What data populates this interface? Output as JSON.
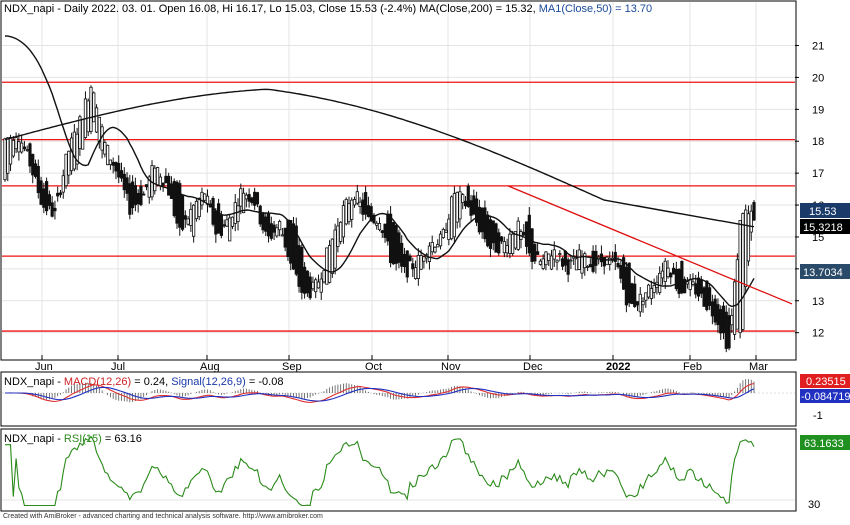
{
  "app": {
    "footer_text": "Created with AmiBroker - advanced charting and technical analysis software. http://www.amibroker.com"
  },
  "price_panel": {
    "header": {
      "ticker": "NDX_napi",
      "info": " - Daily 2022. 03. 01. Open 16.08, Hi 16.17, Lo 15.03, Close 15.53 (-2.4%) MA(Close,200) = 15.32, ",
      "ma50_label": "MA1(Close,50) = 13.70"
    },
    "badges": {
      "close": "15.53",
      "ma200": "15.3218",
      "ma50": "13.7034"
    }
  },
  "macd_panel": {
    "header": {
      "ticker": "NDX_napi",
      "sep": " - ",
      "macd_label": "MACD(12,26)",
      "macd_value": " = 0.24, ",
      "signal_label": "Signal(12,26,9)",
      "signal_value": " = -0.08"
    },
    "badges": {
      "macd": "0.23515",
      "signal": "-0.084719"
    },
    "y_ticks": [
      "-1"
    ]
  },
  "rsi_panel": {
    "header": {
      "ticker": "NDX_napi",
      "sep": " - ",
      "rsi_label": "RSI(15)",
      "rsi_value": " = 63.16"
    },
    "badges": {
      "rsi": "63.1633"
    },
    "y_ticks": [
      "30"
    ]
  },
  "chart_data": [
    {
      "type": "candlestick",
      "title": "NDX_napi - Daily",
      "y_ticks": [
        12,
        13,
        14,
        15,
        16,
        17,
        18,
        19,
        20,
        21
      ],
      "ylim": [
        11.3,
        21.8
      ],
      "x_tick_labels": [
        "Jun",
        "Jul",
        "Aug",
        "Sep",
        "Oct",
        "Nov",
        "Dec",
        "2022",
        "Feb",
        "Mar"
      ],
      "grid": true,
      "last_bar": {
        "open": 16.08,
        "high": 16.17,
        "low": 15.03,
        "close": 15.53,
        "change_pct": -2.4
      },
      "ma200_last": 15.32,
      "ma50_last": 13.7,
      "horizontal_levels": [
        19.85,
        18.05,
        16.6,
        14.4,
        12.05
      ],
      "trendline": {
        "from": {
          "month": "Dec",
          "value": 16.6
        },
        "to": {
          "month": "Mar",
          "value": 12.9
        }
      },
      "ohlc_key": [
        [
          16.8,
          18.05
        ],
        [
          17.8,
          18.3
        ],
        [
          17.9,
          17.3
        ],
        [
          16.8,
          16.0
        ],
        [
          16.0,
          15.7
        ],
        [
          16.8,
          17.6
        ],
        [
          17.7,
          18.6
        ],
        [
          18.6,
          19.9
        ],
        [
          17.5,
          17.9
        ],
        [
          17.3,
          17.0
        ],
        [
          16.7,
          15.9
        ],
        [
          16.5,
          16.2
        ],
        [
          16.3,
          17.3
        ],
        [
          17.0,
          16.6
        ],
        [
          16.5,
          15.1
        ],
        [
          15.0,
          15.9
        ],
        [
          16.1,
          16.4
        ],
        [
          16.0,
          15.0
        ],
        [
          15.1,
          15.6
        ],
        [
          15.9,
          16.5
        ],
        [
          16.6,
          16.1
        ],
        [
          15.6,
          14.9
        ],
        [
          15.1,
          15.4
        ],
        [
          15.6,
          14.0
        ],
        [
          14.2,
          13.1
        ],
        [
          13.3,
          13.5
        ],
        [
          13.7,
          14.7
        ],
        [
          14.9,
          15.8
        ],
        [
          15.8,
          16.4
        ],
        [
          16.3,
          15.5
        ],
        [
          15.3,
          15.6
        ],
        [
          15.7,
          14.2
        ],
        [
          14.5,
          13.9
        ],
        [
          13.8,
          14.2
        ],
        [
          14.4,
          14.8
        ],
        [
          14.9,
          14.9
        ],
        [
          15.0,
          16.4
        ],
        [
          16.5,
          16.0
        ],
        [
          15.9,
          15.3
        ],
        [
          15.5,
          14.6
        ],
        [
          14.6,
          14.8
        ],
        [
          14.6,
          15.4
        ],
        [
          15.6,
          14.4
        ],
        [
          14.0,
          14.2
        ],
        [
          14.2,
          14.6
        ],
        [
          14.4,
          14.0
        ],
        [
          14.0,
          14.4
        ],
        [
          14.4,
          14.1
        ],
        [
          14.2,
          14.3
        ],
        [
          14.4,
          14.1
        ],
        [
          14.0,
          12.8
        ],
        [
          12.6,
          13.1
        ],
        [
          13.2,
          13.6
        ],
        [
          13.7,
          14.3
        ],
        [
          14.2,
          13.3
        ],
        [
          13.4,
          13.5
        ],
        [
          13.6,
          13.0
        ],
        [
          12.9,
          12.5
        ],
        [
          12.4,
          11.5
        ],
        [
          11.8,
          15.9
        ],
        [
          16.08,
          15.53
        ]
      ]
    },
    {
      "type": "line",
      "title": "MACD(12,26), Signal(12,26,9)",
      "series": [
        {
          "name": "MACD(12,26)",
          "last": 0.24
        },
        {
          "name": "Signal(12,26,9)",
          "last": -0.08
        }
      ],
      "y_ticks": [
        -1
      ]
    },
    {
      "type": "line",
      "title": "RSI(15)",
      "series": [
        {
          "name": "RSI(15)",
          "last": 63.16
        }
      ],
      "y_ticks": [
        30
      ]
    }
  ],
  "colors": {
    "grid": "#e4e4e4",
    "axis": "#000000",
    "level_line": "#ee1111",
    "trendline": "#dd1111",
    "ma200": "#111111",
    "ma50": "#111111",
    "candle": "#111111",
    "macd": "#e03030",
    "signal": "#2030c0",
    "rsi": "#2a8a1a",
    "badge_close": "#1a3a6a",
    "badge_ma200": "#000000",
    "badge_ma50": "#2a4a6a",
    "badge_macd": "#e02020",
    "badge_signal": "#2030c0",
    "badge_rsi": "#209020"
  }
}
